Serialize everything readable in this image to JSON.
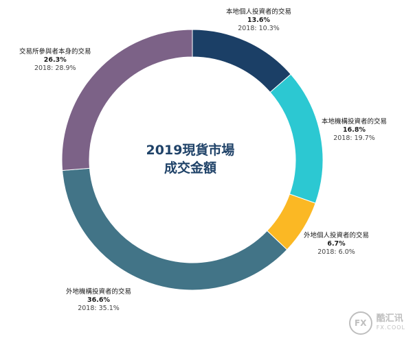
{
  "chart_data": {
    "type": "pie",
    "variant": "donut",
    "title": [
      "2019現貨市場",
      "成交金額"
    ],
    "prev_prefix": "2018: ",
    "slices": [
      {
        "label": "本地個人投資者的交易",
        "value": 13.6,
        "display": "13.6%",
        "prev": "10.3%",
        "color": "#1b3f66"
      },
      {
        "label": "本地機構投資者的交易",
        "value": 16.8,
        "display": "16.8%",
        "prev": "19.7%",
        "color": "#2cc8d2"
      },
      {
        "label": "外地個人投資者的交易",
        "value": 6.7,
        "display": "6.7%",
        "prev": "6.0%",
        "color": "#fbb824"
      },
      {
        "label": "外地機構投資者的交易",
        "value": 36.6,
        "display": "36.6%",
        "prev": "35.1%",
        "color": "#427487"
      },
      {
        "label": "交易所參與者本身的交易",
        "value": 26.3,
        "display": "26.3%",
        "prev": "28.9%",
        "color": "#7c6287"
      }
    ]
  },
  "watermark": {
    "badge": "FX",
    "name": "酷汇讯",
    "sub": "FX.COOL"
  }
}
